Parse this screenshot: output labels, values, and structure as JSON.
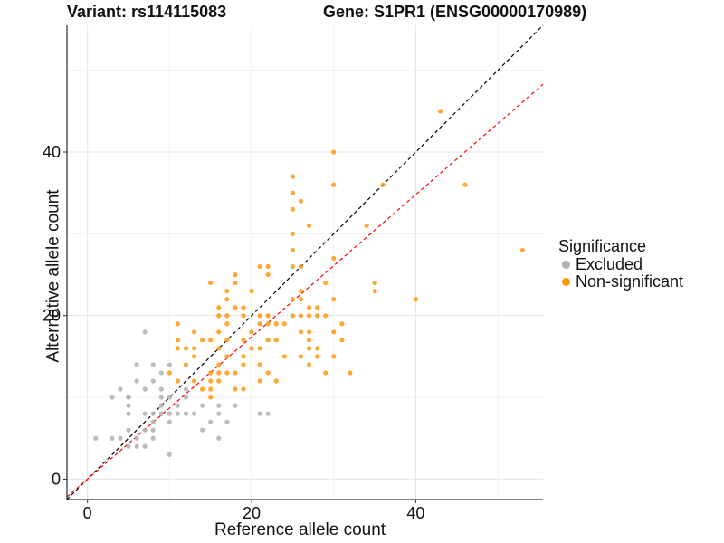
{
  "titles": {
    "left": "Variant: rs114115083",
    "right": "Gene: S1PR1 (ENSG00000170989)"
  },
  "chart_data": {
    "type": "scatter",
    "xlabel": "Reference allele count",
    "ylabel": "Alternative allele count",
    "xlim": [
      -2.5,
      55.5
    ],
    "ylim": [
      -2.5,
      55.5
    ],
    "x_ticks": [
      0,
      20,
      40
    ],
    "y_ticks": [
      0,
      20,
      40
    ],
    "grid": true,
    "legend": {
      "title": "Significance",
      "position": "right"
    },
    "reference_lines": [
      {
        "name": "identity",
        "slope": 1,
        "intercept": 0,
        "color": "#000000",
        "style": "dashed"
      },
      {
        "name": "fit",
        "slope": 0.87,
        "intercept": 0,
        "color": "#ff0000",
        "style": "dashed"
      }
    ],
    "series": [
      {
        "name": "Excluded",
        "color": "#b0b0b0",
        "points": [
          [
            1,
            5
          ],
          [
            3,
            5
          ],
          [
            3,
            10
          ],
          [
            4,
            5
          ],
          [
            4,
            11
          ],
          [
            5,
            4
          ],
          [
            5,
            6
          ],
          [
            5,
            8
          ],
          [
            5,
            9
          ],
          [
            5,
            10
          ],
          [
            5,
            10
          ],
          [
            6,
            4
          ],
          [
            6,
            5
          ],
          [
            6,
            12
          ],
          [
            6,
            14
          ],
          [
            7,
            4
          ],
          [
            7,
            6
          ],
          [
            7,
            8
          ],
          [
            7,
            11
          ],
          [
            7,
            18
          ],
          [
            8,
            5
          ],
          [
            8,
            6
          ],
          [
            8,
            7
          ],
          [
            8,
            8
          ],
          [
            8,
            12
          ],
          [
            8,
            14
          ],
          [
            9,
            8
          ],
          [
            9,
            9
          ],
          [
            9,
            10
          ],
          [
            9,
            11
          ],
          [
            10,
            3
          ],
          [
            10,
            7
          ],
          [
            10,
            8
          ],
          [
            10,
            10
          ],
          [
            11,
            8
          ],
          [
            11,
            9
          ],
          [
            12,
            8
          ],
          [
            12,
            11
          ],
          [
            13,
            8
          ],
          [
            14,
            6
          ],
          [
            14,
            9
          ],
          [
            15,
            7
          ],
          [
            16,
            5
          ],
          [
            16,
            8
          ],
          [
            16,
            9
          ],
          [
            17,
            7
          ],
          [
            18,
            9
          ],
          [
            21,
            8
          ],
          [
            22,
            8
          ],
          [
            9,
            13
          ],
          [
            10,
            14
          ],
          [
            12,
            10
          ]
        ]
      },
      {
        "name": "Non-significant",
        "color": "#ff9811",
        "points": [
          [
            10,
            13
          ],
          [
            11,
            12
          ],
          [
            11,
            16
          ],
          [
            11,
            17
          ],
          [
            11,
            19
          ],
          [
            12,
            14
          ],
          [
            12,
            16
          ],
          [
            13,
            12
          ],
          [
            13,
            15
          ],
          [
            13,
            18
          ],
          [
            13,
            16
          ],
          [
            14,
            11
          ],
          [
            14,
            17
          ],
          [
            15,
            10
          ],
          [
            15,
            11
          ],
          [
            15,
            12
          ],
          [
            15,
            13
          ],
          [
            15,
            17
          ],
          [
            15,
            24
          ],
          [
            16,
            12
          ],
          [
            16,
            13
          ],
          [
            16,
            14
          ],
          [
            16,
            16
          ],
          [
            16,
            18
          ],
          [
            16,
            20
          ],
          [
            16,
            21
          ],
          [
            17,
            13
          ],
          [
            17,
            15
          ],
          [
            17,
            17
          ],
          [
            17,
            19
          ],
          [
            17,
            20
          ],
          [
            17,
            22
          ],
          [
            17,
            23
          ],
          [
            18,
            11
          ],
          [
            18,
            13
          ],
          [
            18,
            21
          ],
          [
            18,
            24
          ],
          [
            18,
            25
          ],
          [
            19,
            11
          ],
          [
            19,
            14
          ],
          [
            19,
            15
          ],
          [
            19,
            17
          ],
          [
            19,
            20
          ],
          [
            19,
            21
          ],
          [
            20,
            16
          ],
          [
            20,
            18
          ],
          [
            20,
            23
          ],
          [
            21,
            12
          ],
          [
            21,
            14
          ],
          [
            21,
            16
          ],
          [
            21,
            19
          ],
          [
            21,
            20
          ],
          [
            21,
            26
          ],
          [
            22,
            13
          ],
          [
            22,
            17
          ],
          [
            22,
            19
          ],
          [
            22,
            20
          ],
          [
            22,
            25
          ],
          [
            22,
            26
          ],
          [
            23,
            12
          ],
          [
            23,
            19
          ],
          [
            24,
            15
          ],
          [
            24,
            19
          ],
          [
            25,
            20
          ],
          [
            25,
            22
          ],
          [
            25,
            26
          ],
          [
            25,
            28
          ],
          [
            25,
            30
          ],
          [
            25,
            33
          ],
          [
            25,
            35
          ],
          [
            25,
            37
          ],
          [
            26,
            15
          ],
          [
            26,
            20
          ],
          [
            26,
            22
          ],
          [
            26,
            23
          ],
          [
            26,
            26
          ],
          [
            26,
            34
          ],
          [
            27,
            14
          ],
          [
            27,
            16
          ],
          [
            27,
            17
          ],
          [
            27,
            18
          ],
          [
            27,
            20
          ],
          [
            27,
            21
          ],
          [
            27,
            31
          ],
          [
            28,
            16
          ],
          [
            28,
            20
          ],
          [
            28,
            21
          ],
          [
            29,
            13
          ],
          [
            29,
            20
          ],
          [
            29,
            24
          ],
          [
            30,
            15
          ],
          [
            30,
            18
          ],
          [
            30,
            22
          ],
          [
            30,
            27
          ],
          [
            30,
            36
          ],
          [
            30,
            40
          ],
          [
            31,
            17
          ],
          [
            31,
            19
          ],
          [
            32,
            13
          ],
          [
            34,
            31
          ],
          [
            35,
            23
          ],
          [
            35,
            24
          ],
          [
            36,
            36
          ],
          [
            40,
            22
          ],
          [
            43,
            45
          ],
          [
            46,
            36
          ],
          [
            53,
            28
          ],
          [
            28,
            15
          ],
          [
            23,
            17
          ],
          [
            26,
            18
          ]
        ]
      }
    ]
  }
}
